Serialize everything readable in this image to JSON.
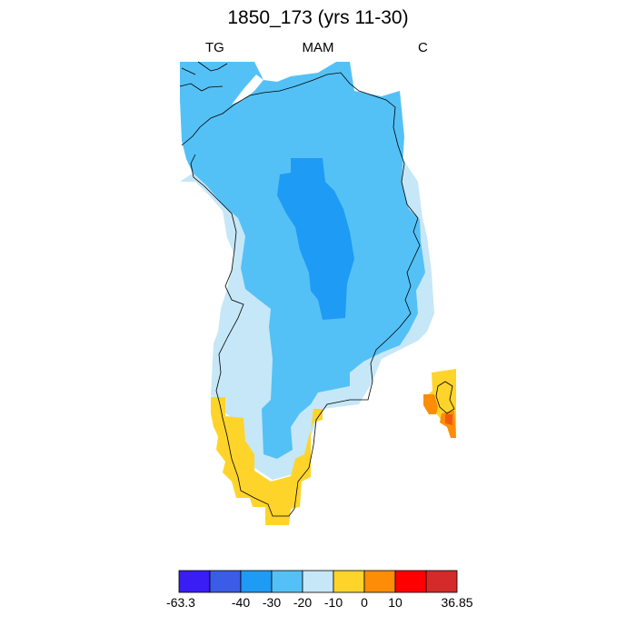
{
  "title": "1850_173 (yrs 11-30)",
  "labels": {
    "left": "TG",
    "center": "MAM",
    "right": "C"
  },
  "colorbar": {
    "colors": [
      "#3a1cf5",
      "#3a5ce6",
      "#1e9bf5",
      "#54c1f6",
      "#c6e7f7",
      "#fed42a",
      "#fd8c06",
      "#fe0000",
      "#d42a2a"
    ],
    "tick_labels": [
      "-63.3",
      "-40",
      "-30",
      "-20",
      "-10",
      "0",
      "10",
      "36.85"
    ]
  },
  "legend_colors": {
    "deep_blue": "#1e9bf5",
    "mid_blue": "#54c1f6",
    "light_blue": "#c6e7f7",
    "yellow": "#fed42a",
    "orange": "#fd8c06",
    "red": "#fe0000",
    "outline": "#000000"
  }
}
